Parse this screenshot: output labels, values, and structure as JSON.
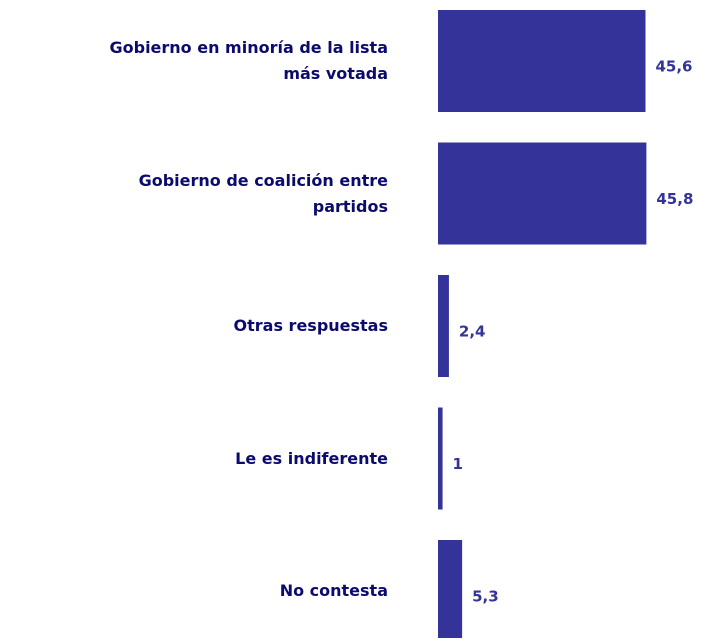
{
  "chart_data": {
    "type": "hbar",
    "categories": [
      "Gobierno en minoría de la lista más votada",
      "Gobierno de coalición entre partidos",
      "Otras respuestas",
      "Le es indiferente",
      "No contesta"
    ],
    "values": [
      45.6,
      45.8,
      2.4,
      1,
      5.3
    ],
    "value_labels": [
      "45,6",
      "45,8",
      "2,4",
      "1",
      "5,3"
    ],
    "color": "#333399"
  }
}
